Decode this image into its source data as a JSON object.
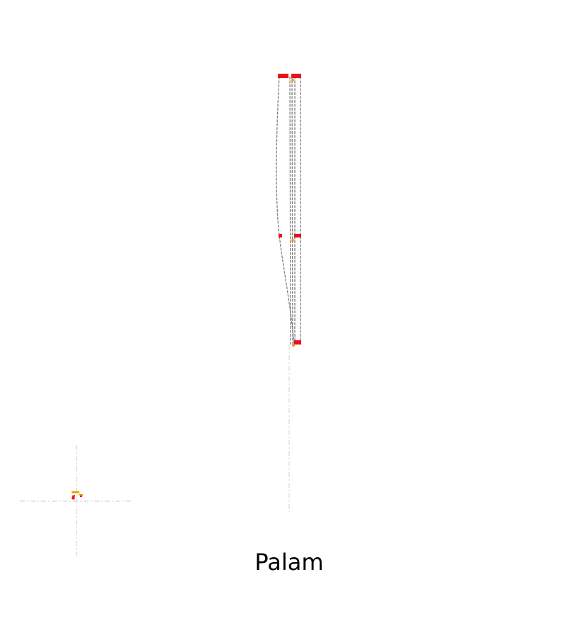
{
  "figure": {
    "caption": "Palam"
  },
  "colors": {
    "background": "#ffffff",
    "route_line": "#808080",
    "guide_line": "#d6d6d6",
    "marker_red": "#e8141c",
    "marker_orange": "#f5a000"
  }
}
